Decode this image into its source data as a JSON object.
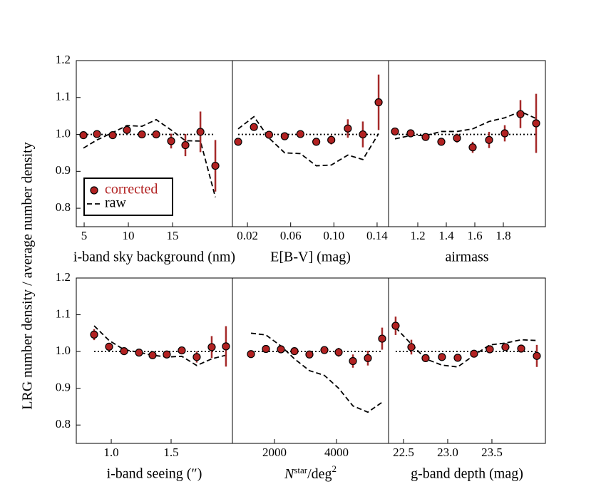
{
  "ylabel": "LRG number density / average number density",
  "chart_data": [
    {
      "type": "errorbar",
      "xlabel": "i-band sky background (nm)",
      "xlim": [
        4.11,
        21.77
      ],
      "xticks": [
        5,
        10,
        15
      ],
      "ylim": [
        0.75,
        1.2
      ],
      "yticks": [
        0.8,
        0.9,
        {
          "value": 1,
          "label": "1.0"
        },
        1.1,
        1.2
      ],
      "hline": 1,
      "legend": "lower left",
      "x": [
        4.92,
        6.45,
        8.23,
        9.84,
        11.53,
        13.15,
        14.84,
        16.45,
        18.15,
        19.84
      ],
      "series": [
        {
          "name": "corrected",
          "color": "#b22222",
          "values": [
            0.998,
            1.001,
            0.998,
            1.012,
            1.0,
            1.0,
            0.982,
            0.971,
            1.007,
            0.915
          ],
          "errors": [
            0.01,
            0.008,
            0.005,
            0.008,
            0.005,
            0.01,
            0.02,
            0.03,
            0.055,
            0.07
          ]
        },
        {
          "name": "raw",
          "color": "#000000",
          "values": [
            0.963,
            0.985,
            1.005,
            1.024,
            1.022,
            1.04,
            1.012,
            0.983,
            0.982,
            0.83
          ]
        }
      ]
    },
    {
      "type": "errorbar",
      "xlabel": "E[B-V] (mag)",
      "xlim": [
        0.0061,
        0.1506
      ],
      "xticks": [
        0.02,
        0.06,
        {
          "value": 0.1,
          "label": "0.10"
        },
        0.14
      ],
      "ylim": [
        0.75,
        1.2
      ],
      "hline": 1,
      "x": [
        0.0114,
        0.026,
        0.04,
        0.0545,
        0.069,
        0.0837,
        0.0976,
        0.1129,
        0.1268,
        0.1414
      ],
      "series": [
        {
          "color": "#b22222",
          "values": [
            0.98,
            1.02,
            0.999,
            0.995,
            1.001,
            0.98,
            0.985,
            1.016,
            1.0,
            1.087
          ],
          "errors": [
            0.005,
            0.005,
            0.005,
            0.005,
            0.005,
            0.01,
            0.012,
            0.025,
            0.035,
            0.075
          ]
        },
        {
          "color": "#000000",
          "values": [
            1.015,
            1.048,
            0.99,
            0.95,
            0.948,
            0.915,
            0.917,
            0.944,
            0.932,
            1.002
          ]
        }
      ]
    },
    {
      "type": "errorbar",
      "xlabel": "airmass",
      "xlim": [
        0.995,
        2.095
      ],
      "xticks": [
        1.2,
        1.4,
        1.6,
        1.8
      ],
      "ylim": [
        0.75,
        1.2
      ],
      "hline": 1,
      "x": [
        1.04,
        1.15,
        1.255,
        1.365,
        1.475,
        1.585,
        1.7,
        1.81,
        1.92,
        2.03
      ],
      "series": [
        {
          "color": "#b22222",
          "values": [
            1.008,
            1.003,
            0.993,
            0.98,
            0.99,
            0.965,
            0.985,
            1.003,
            1.055,
            1.03
          ],
          "errors": [
            0.005,
            0.005,
            0.005,
            0.008,
            0.012,
            0.015,
            0.022,
            0.022,
            0.038,
            0.08
          ]
        },
        {
          "color": "#000000",
          "values": [
            0.988,
            0.997,
            0.997,
            1.008,
            1.008,
            1.015,
            1.035,
            1.045,
            1.062,
            1.043
          ]
        }
      ]
    },
    {
      "type": "errorbar",
      "xlabel": "i-band seeing (″)",
      "xlim": [
        0.708,
        2.012
      ],
      "xticks": [
        {
          "value": 1,
          "label": "1.0"
        },
        1.5
      ],
      "ylim": [
        0.75,
        1.2
      ],
      "yticks": [
        0.8,
        0.9,
        {
          "value": 1,
          "label": "1.0"
        },
        1.1,
        1.2
      ],
      "hline": 1,
      "x": [
        0.857,
        0.982,
        1.107,
        1.232,
        1.345,
        1.464,
        1.589,
        1.714,
        1.839,
        1.958
      ],
      "series": [
        {
          "color": "#b22222",
          "values": [
            1.046,
            1.013,
            1.001,
            0.997,
            0.99,
            0.992,
            1.003,
            0.985,
            1.012,
            1.014
          ],
          "errors": [
            0.015,
            0.008,
            0.005,
            0.005,
            0.005,
            0.005,
            0.008,
            0.015,
            0.03,
            0.055
          ]
        },
        {
          "color": "#000000",
          "values": [
            1.07,
            1.03,
            1.005,
            0.998,
            0.99,
            0.985,
            0.987,
            0.962,
            0.98,
            0.99
          ]
        }
      ]
    },
    {
      "type": "errorbar",
      "xlabel_parts": [
        "N",
        "star",
        "/deg",
        "2"
      ],
      "xlim": [
        643,
        5678
      ],
      "xticks": [
        2000,
        4000
      ],
      "ylim": [
        0.75,
        1.2
      ],
      "hline": 1,
      "x": [
        1241,
        1724,
        2207,
        2644,
        3126,
        3609,
        4069,
        4529,
        5011,
        5471
      ],
      "series": [
        {
          "color": "#b22222",
          "values": [
            0.993,
            1.007,
            1.006,
            1.001,
            0.992,
            1.004,
            0.998,
            0.974,
            0.982,
            1.035
          ],
          "errors": [
            0.005,
            0.005,
            0.005,
            0.005,
            0.008,
            0.01,
            0.012,
            0.018,
            0.02,
            0.03
          ]
        },
        {
          "color": "#000000",
          "values": [
            1.05,
            1.045,
            1.015,
            0.98,
            0.948,
            0.935,
            0.9,
            0.852,
            0.835,
            0.862
          ]
        }
      ]
    },
    {
      "type": "errorbar",
      "xlabel": "g-band depth (mag)",
      "xlim": [
        22.331,
        24.105
      ],
      "xticks": [
        22.5,
        {
          "value": 23,
          "label": "23.0"
        },
        23.5
      ],
      "ylim": [
        0.75,
        1.2
      ],
      "hline": 1,
      "x": [
        22.411,
        22.589,
        22.75,
        22.935,
        23.113,
        23.298,
        23.476,
        23.653,
        23.831,
        24.008
      ],
      "series": [
        {
          "color": "#b22222",
          "values": [
            1.07,
            1.012,
            0.982,
            0.985,
            0.983,
            0.994,
            1.006,
            1.012,
            1.008,
            0.988
          ],
          "errors": [
            0.025,
            0.02,
            0.01,
            0.008,
            0.008,
            0.008,
            0.008,
            0.008,
            0.01,
            0.03
          ]
        },
        {
          "color": "#000000",
          "values": [
            1.065,
            1.02,
            0.98,
            0.963,
            0.958,
            0.99,
            1.018,
            1.023,
            1.032,
            1.03
          ]
        }
      ]
    }
  ]
}
